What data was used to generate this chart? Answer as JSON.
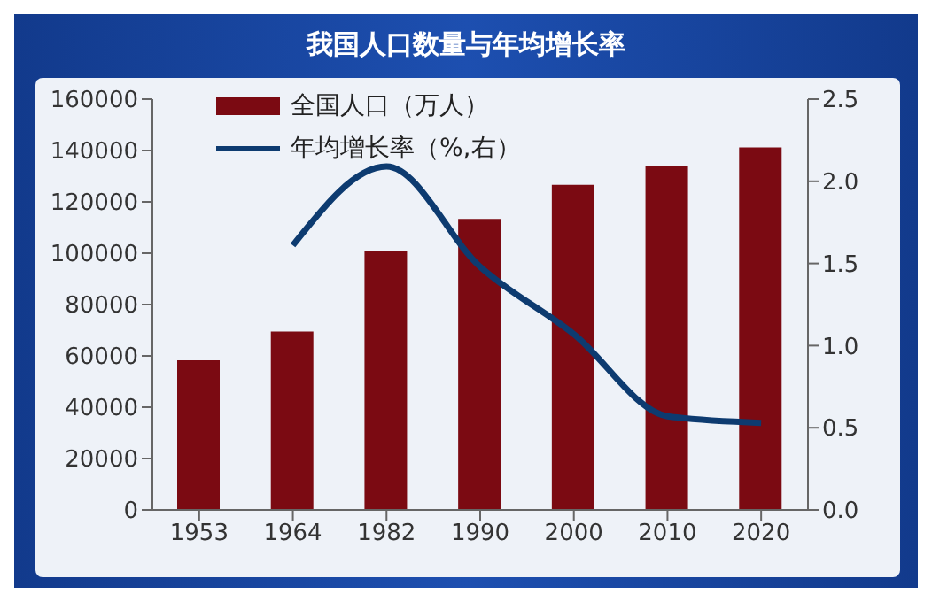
{
  "chart_data": {
    "type": "bar",
    "title": "我国人口数量与年均增长率",
    "categories": [
      "1953",
      "1964",
      "1982",
      "1990",
      "2000",
      "2010",
      "2020"
    ],
    "series": [
      {
        "name": "全国人口（万人）",
        "color": "#7b0a12",
        "values": [
          58300,
          69500,
          100800,
          113400,
          126600,
          134000,
          141200
        ]
      },
      {
        "name": "年均增长率（%,右）",
        "type": "line",
        "axis": "y2",
        "color": "#0d3b70",
        "values": [
          null,
          1.61,
          2.09,
          1.48,
          1.07,
          0.57,
          0.53
        ]
      }
    ],
    "ylim": [
      0,
      160000
    ],
    "yticks": [
      0,
      20000,
      40000,
      60000,
      80000,
      100000,
      120000,
      140000,
      160000
    ],
    "y2lim": [
      0,
      2.5
    ],
    "y2ticks": [
      {
        "value": 0,
        "label": "0.0"
      },
      0.5,
      {
        "value": 1,
        "label": "1.0"
      },
      1.5,
      {
        "value": 2,
        "label": "2.0"
      },
      2.5
    ],
    "grid": false,
    "legend": "top left",
    "marker": "none",
    "line_style": "solid"
  }
}
